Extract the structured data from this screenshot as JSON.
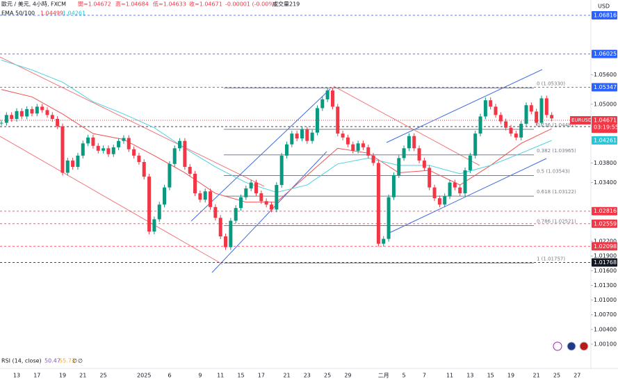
{
  "chart_data": {
    "type": "candlestick",
    "header": {
      "symbol": "歐元 / 美元, 4小時, FXCM",
      "open": "開=1.04672",
      "high": "高=1.04684",
      "low": "低=1.04633",
      "close": "收=1.04671",
      "change": "-0.00001 (-0.00%)",
      "volume": "成交量219"
    },
    "currency": "USD",
    "symbol_tag": "EURUSD",
    "countdown": "03:19:55",
    "indicator_label": "EMA 50/100",
    "rsi": {
      "label": "RSI (14, close)",
      "values": [
        "50.47",
        "55.73",
        "∅",
        "∅"
      ]
    },
    "up_color": "#089981",
    "down_color": "#f23645",
    "categories": [
      null,
      null,
      null,
      "13",
      null,
      null,
      null,
      "17",
      null,
      null,
      null,
      null,
      "19",
      null,
      null,
      null,
      "21",
      null,
      null,
      null,
      "25",
      null,
      null,
      null,
      null,
      null,
      null,
      null,
      "2025",
      null,
      null,
      null,
      null,
      "6",
      null,
      null,
      null,
      null,
      null,
      "9",
      null,
      null,
      null,
      "11",
      null,
      null,
      null,
      "15",
      null,
      null,
      null,
      "17",
      null,
      null,
      null,
      null,
      "21",
      null,
      null,
      null,
      "23",
      null,
      null,
      null,
      "25",
      null,
      null,
      null,
      "29",
      null,
      null,
      null,
      null,
      null,
      null,
      "二月",
      null,
      null,
      null,
      "5",
      null,
      null,
      null,
      "7",
      null,
      null,
      null,
      null,
      "11",
      null,
      null,
      null,
      "13",
      null,
      null,
      null,
      "15",
      null,
      null,
      null,
      "19",
      null,
      null,
      null,
      null,
      "21",
      null,
      null,
      null,
      "25",
      null,
      null,
      null,
      "27",
      null
    ],
    "values": [
      1.0462,
      1.0478,
      1.047,
      1.0486,
      1.0475,
      1.049,
      1.0481,
      1.0495,
      1.0488,
      1.0478,
      1.047,
      1.0455,
      1.036,
      1.0385,
      1.0372,
      1.0395,
      1.042,
      1.0432,
      1.0415,
      1.0405,
      1.041,
      1.0398,
      1.0412,
      1.0425,
      1.0431,
      1.0408,
      1.0395,
      1.0382,
      1.0352,
      1.024,
      1.0265,
      1.0295,
      1.033,
      1.0378,
      1.041,
      1.0425,
      1.0372,
      1.0358,
      1.0318,
      1.0305,
      1.0322,
      1.029,
      1.0268,
      1.023,
      1.0208,
      1.0262,
      1.0288,
      1.031,
      1.0328,
      1.034,
      1.0318,
      1.0302,
      1.0295,
      1.0285,
      1.0335,
      1.0395,
      1.0418,
      1.044,
      1.043,
      1.0448,
      1.0425,
      1.0442,
      1.0492,
      1.051,
      1.0528,
      1.0495,
      1.044,
      1.0432,
      1.0418,
      1.0405,
      1.042,
      1.0412,
      1.0395,
      1.038,
      1.0215,
      1.0225,
      1.031,
      1.0355,
      1.039,
      1.041,
      1.0435,
      1.041,
      1.0385,
      1.037,
      1.033,
      1.0308,
      1.0295,
      1.0312,
      1.034,
      1.033,
      1.0318,
      1.0365,
      1.0395,
      1.044,
      1.0475,
      1.0508,
      1.0495,
      1.0478,
      1.0465,
      1.0452,
      1.044,
      1.0432,
      1.046,
      1.0498,
      1.0485,
      1.0462,
      1.0512,
      1.0478,
      1.0471,
      null,
      null,
      null,
      null,
      null,
      null
    ],
    "ema": [
      {
        "name": "1.04499",
        "color": "#f0504f",
        "x": [
          0,
          6,
          12,
          18,
          24,
          30,
          36,
          42,
          48,
          54,
          60,
          66,
          72,
          78,
          84,
          90,
          96,
          102,
          108
        ],
        "values": [
          1.053,
          1.0515,
          1.048,
          1.044,
          1.0428,
          1.0395,
          1.036,
          1.0318,
          1.03,
          1.03,
          1.0355,
          1.041,
          1.04,
          1.036,
          1.0365,
          1.0335,
          1.0375,
          1.042,
          1.045
        ]
      },
      {
        "name": "1.04261",
        "color": "#4dd0e1",
        "x": [
          0,
          6,
          12,
          18,
          24,
          30,
          36,
          42,
          48,
          54,
          60,
          66,
          72,
          78,
          84,
          90,
          96,
          102,
          108
        ],
        "values": [
          1.059,
          1.057,
          1.0545,
          1.0505,
          1.048,
          1.0452,
          1.041,
          1.0372,
          1.034,
          1.032,
          1.0335,
          1.0378,
          1.039,
          1.0375,
          1.0375,
          1.0358,
          1.0375,
          1.04,
          1.0426
        ]
      }
    ],
    "fib_levels": [
      {
        "value": 1.0533,
        "label": "0 (1.05330)"
      },
      {
        "value": 1.04487,
        "label": "0.236 (1.04487)"
      },
      {
        "value": 1.03965,
        "label": "0.382 (1.03965)"
      },
      {
        "value": 1.03543,
        "label": "0.5 (1.03543)"
      },
      {
        "value": 1.03122,
        "label": "0.618 (1.03122)"
      },
      {
        "value": 1.02521,
        "label": "0.786 (1.02521)"
      },
      {
        "value": 1.01757,
        "label": "1 (1.01757)"
      }
    ],
    "price_labels": [
      {
        "value": 1.06816,
        "label": "1.06816",
        "color": "#2962ff"
      },
      {
        "value": 1.06025,
        "label": "1.06025",
        "color": "#2962ff"
      },
      {
        "value": 1.05347,
        "label": "1.05347",
        "color": "#2962ff"
      },
      {
        "value": 1.04542,
        "label": "1.04542",
        "color": "#131722"
      },
      {
        "value": 1.02816,
        "label": "1.02816",
        "color": "#f23645"
      },
      {
        "value": 1.02559,
        "label": "1.02559",
        "color": "#f23645"
      },
      {
        "value": 1.02098,
        "label": "1.02098",
        "color": "#f23645"
      },
      {
        "value": 1.01768,
        "label": "1.01768",
        "color": "#131722"
      }
    ],
    "last_price": {
      "value": 1.04671,
      "label": "1.04671",
      "color": "#f23645"
    },
    "ema_labels": [
      {
        "value": 1.04499,
        "label": "1.04499",
        "color": "#f23645"
      },
      {
        "value": 1.04261,
        "label": "1.04261",
        "color": "#26c6da"
      }
    ],
    "ylim": [
      0.99603,
      1.07128
    ],
    "yticks": [
      {
        "value": 1.056,
        "label": "1.05600"
      },
      {
        "value": 1.05,
        "label": "1.05000"
      },
      {
        "value": 1.038,
        "label": "1.03800"
      },
      {
        "value": 1.034,
        "label": "1.03400"
      },
      {
        "value": 1.022,
        "label": "1.02200"
      },
      {
        "value": 1.019,
        "label": "1.01900"
      },
      {
        "value": 1.016,
        "label": "1.01600"
      },
      {
        "value": 1.013,
        "label": "1.01300"
      },
      {
        "value": 1.01,
        "label": "1.01000"
      },
      {
        "value": 1.007,
        "label": "1.00700"
      },
      {
        "value": 1.004,
        "label": "1.00400"
      },
      {
        "value": 1.001,
        "label": "1.00100"
      }
    ],
    "grid": false
  }
}
